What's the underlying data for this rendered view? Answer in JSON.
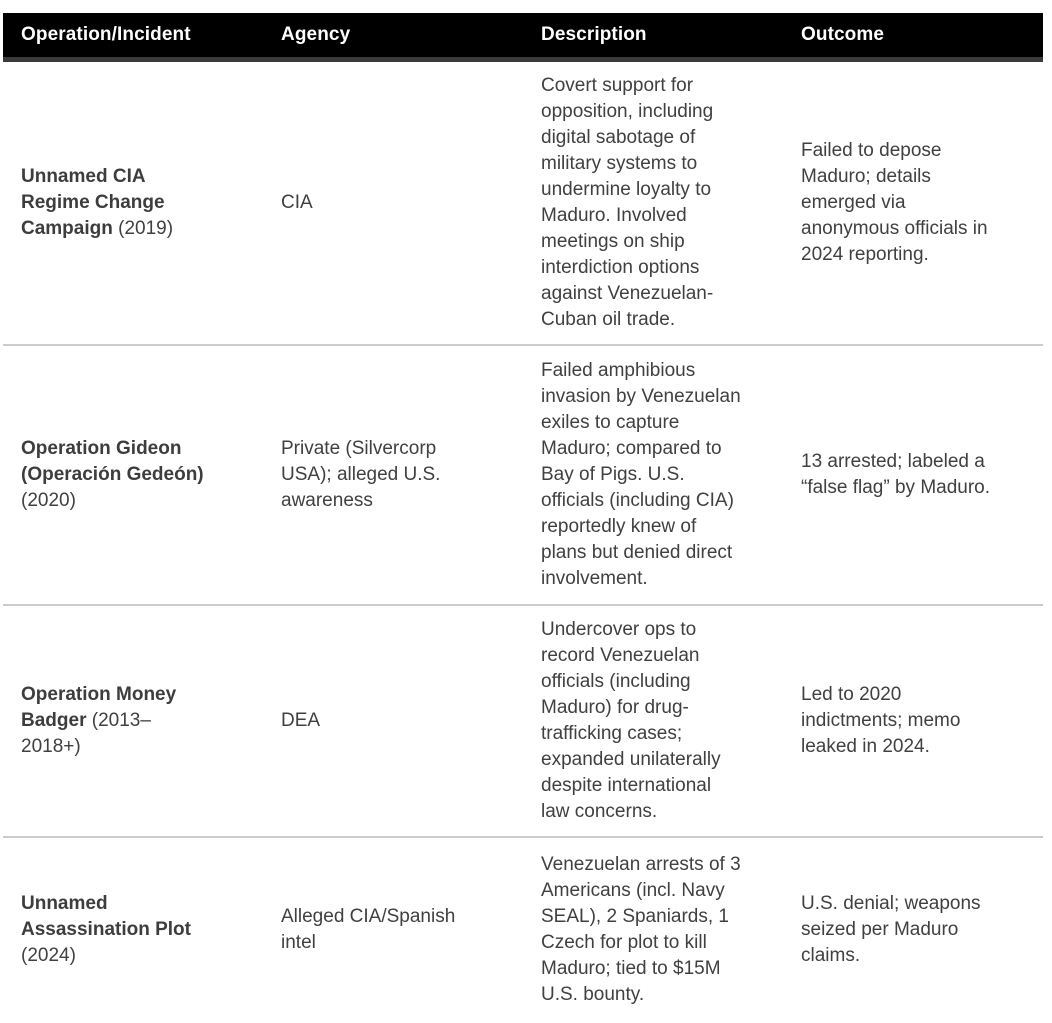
{
  "colors": {
    "header_background": "#000000",
    "header_text": "#ffffff",
    "header_bottom_border": "#3a3a3a",
    "body_text": "#404040",
    "row_divider": "#cccccc",
    "page_background": "#ffffff"
  },
  "table": {
    "columns": [
      "Operation/Incident",
      "Agency",
      "Description",
      "Outcome"
    ],
    "rows": [
      {
        "operation": "Unnamed CIA Regime Change Campaign",
        "period": "(2019)",
        "agency": "CIA",
        "description": "Covert support for opposition, including digital sabotage of military systems to undermine loyalty to Maduro. Involved meetings on ship interdiction options against Venezuelan-Cuban oil trade.",
        "outcome": "Failed to depose Maduro; details emerged via anonymous officials in 2024 reporting."
      },
      {
        "operation": "Operation Gideon (Operación Gedeón)",
        "period": "(2020)",
        "agency": "Private (Silvercorp USA); alleged U.S. awareness",
        "description": "Failed amphibious invasion by Venezuelan exiles to capture Maduro; compared to Bay of Pigs. U.S. officials (including CIA) reportedly knew of plans but denied direct involvement.",
        "outcome": "13 arrested; labeled a “false flag” by Maduro."
      },
      {
        "operation": "Operation Money Badger",
        "period": "(2013–2018+)",
        "agency": "DEA",
        "description": "Undercover ops to record Venezuelan officials (including Maduro) for drug-trafficking cases; expanded unilaterally despite international law concerns.",
        "outcome": "Led to 2020 indictments; memo leaked in 2024."
      },
      {
        "operation": "Unnamed Assassination Plot",
        "period": "(2024)",
        "agency": "Alleged CIA/Spanish intel",
        "description": "Venezuelan arrests of 3 Americans (incl. Navy SEAL), 2 Spaniards, 1 Czech for plot to kill Maduro; tied to $15M U.S. bounty.",
        "outcome": "U.S. denial; weapons seized per Maduro claims."
      }
    ]
  }
}
